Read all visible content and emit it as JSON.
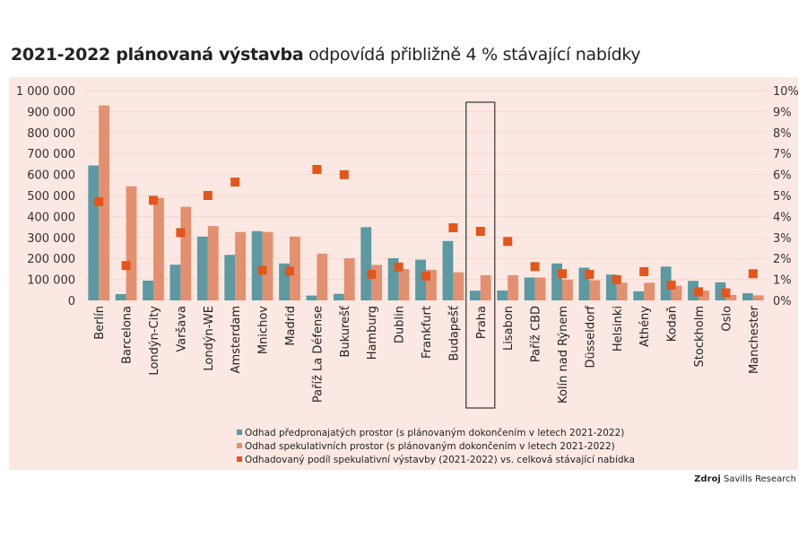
{
  "title": {
    "bold": "2021-2022 plánovaná výstavba",
    "rest": "odpovídá přibližně 4 % stávající nabídky"
  },
  "source": {
    "label": "Zdroj",
    "value": "Savills Research"
  },
  "colors": {
    "preleased": "#5b9aa2",
    "speculative": "#e2906f",
    "share": "#e2561c",
    "panel": "#fce8e2"
  },
  "chart_data": {
    "type": "bar",
    "categories": [
      "Berlín",
      "Barcelona",
      "Londýn-City",
      "Varšava",
      "Londýn-WE",
      "Amsterdam",
      "Mnichov",
      "Madrid",
      "Paříž La Défense",
      "Bukurešť",
      "Hamburg",
      "Dublin",
      "Frankfurt",
      "Budapešť",
      "Praha",
      "Lisabon",
      "Paříž CBD",
      "Kolín nad Rýnem",
      "Düsseldorf",
      "Helsinki",
      "Athény",
      "Kodaň",
      "Stockholm",
      "Oslo",
      "Manchester"
    ],
    "highlight": "Praha",
    "series": [
      {
        "name": "Odhad předpronajatých prostor (s plánovaným dokončením v letech 2021-2022)",
        "type": "bar",
        "axis": "left",
        "values": [
          643000,
          30000,
          94000,
          170000,
          304000,
          217000,
          330000,
          176000,
          23000,
          31000,
          349000,
          201000,
          194000,
          283000,
          46000,
          47000,
          109000,
          176000,
          156000,
          123000,
          43000,
          161000,
          93000,
          86000,
          34000
        ]
      },
      {
        "name": "Odhad spekulativních prostor (s plánovaným dokončením v letech 2021-2022)",
        "type": "bar",
        "axis": "left",
        "values": [
          929000,
          544000,
          489000,
          446000,
          354000,
          326000,
          326000,
          304000,
          223000,
          201000,
          169000,
          149000,
          146000,
          134000,
          120000,
          120000,
          109000,
          99000,
          96000,
          84000,
          84000,
          70000,
          47000,
          26000,
          24000
        ]
      },
      {
        "name": "Odhadovaný podíl spekulativní výstavby (2021-2022) vs. celková stávající nabídka",
        "type": "scatter",
        "axis": "right",
        "values": [
          4.7,
          1.66,
          4.77,
          3.23,
          5.0,
          5.64,
          1.44,
          1.4,
          6.24,
          5.99,
          1.24,
          1.59,
          1.16,
          3.46,
          3.29,
          2.81,
          1.61,
          1.27,
          1.24,
          0.99,
          1.37,
          0.73,
          0.41,
          0.36,
          1.27
        ]
      }
    ],
    "left_axis": {
      "ylim": [
        0,
        1000000
      ],
      "ticks": [
        "0",
        "100 000",
        "200 000",
        "300 000",
        "400 000",
        "500 000",
        "600 000",
        "700 000",
        "800 000",
        "900 000",
        "1 000 000"
      ]
    },
    "right_axis": {
      "ylim": [
        0,
        10
      ],
      "unit": "%",
      "ticks": [
        "0%",
        "1%",
        "2%",
        "3%",
        "4%",
        "5%",
        "6%",
        "7%",
        "8%",
        "9%",
        "10%"
      ]
    },
    "grid": true,
    "legend_position": "bottom"
  }
}
